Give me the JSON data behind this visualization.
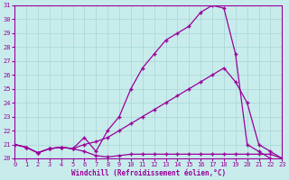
{
  "xlabel": "Windchill (Refroidissement éolien,°C)",
  "bg_color": "#c8ecec",
  "grid_color": "#a8d4d4",
  "line_color": "#990099",
  "xlim": [
    0,
    23
  ],
  "ylim": [
    20,
    31
  ],
  "xticks": [
    0,
    1,
    2,
    3,
    4,
    5,
    6,
    7,
    8,
    9,
    10,
    11,
    12,
    13,
    14,
    15,
    16,
    17,
    18,
    19,
    20,
    21,
    22,
    23
  ],
  "yticks": [
    20,
    21,
    22,
    23,
    24,
    25,
    26,
    27,
    28,
    29,
    30,
    31
  ],
  "series1_x": [
    0,
    1,
    2,
    3,
    4,
    5,
    6,
    7,
    8,
    9,
    10,
    11,
    12,
    13,
    14,
    15,
    16,
    17,
    18,
    19,
    20,
    21,
    22,
    23
  ],
  "series1_y": [
    21.0,
    20.8,
    20.4,
    20.7,
    20.8,
    20.7,
    20.5,
    20.2,
    20.1,
    20.2,
    20.3,
    20.3,
    20.3,
    20.3,
    20.3,
    20.3,
    20.3,
    20.3,
    20.3,
    20.3,
    20.3,
    20.3,
    20.3,
    20.0
  ],
  "series2_x": [
    0,
    1,
    2,
    3,
    4,
    5,
    6,
    7,
    8,
    9,
    10,
    11,
    12,
    13,
    14,
    15,
    16,
    17,
    18,
    19,
    20,
    21,
    22,
    23
  ],
  "series2_y": [
    21.0,
    20.8,
    20.4,
    20.7,
    20.8,
    20.7,
    21.0,
    21.2,
    21.5,
    22.0,
    22.5,
    23.0,
    23.5,
    24.0,
    24.5,
    25.0,
    25.5,
    26.0,
    26.5,
    25.5,
    24.0,
    21.0,
    20.5,
    20.0
  ],
  "series3_x": [
    0,
    1,
    2,
    3,
    4,
    5,
    6,
    7,
    8,
    9,
    10,
    11,
    12,
    13,
    14,
    15,
    16,
    17,
    18,
    19,
    20,
    21,
    22,
    23
  ],
  "series3_y": [
    21.0,
    20.8,
    20.4,
    20.7,
    20.8,
    20.7,
    21.5,
    20.5,
    22.0,
    23.0,
    25.0,
    26.5,
    27.5,
    28.5,
    29.0,
    29.5,
    30.5,
    31.0,
    30.8,
    27.5,
    21.0,
    20.5,
    20.0,
    null
  ]
}
